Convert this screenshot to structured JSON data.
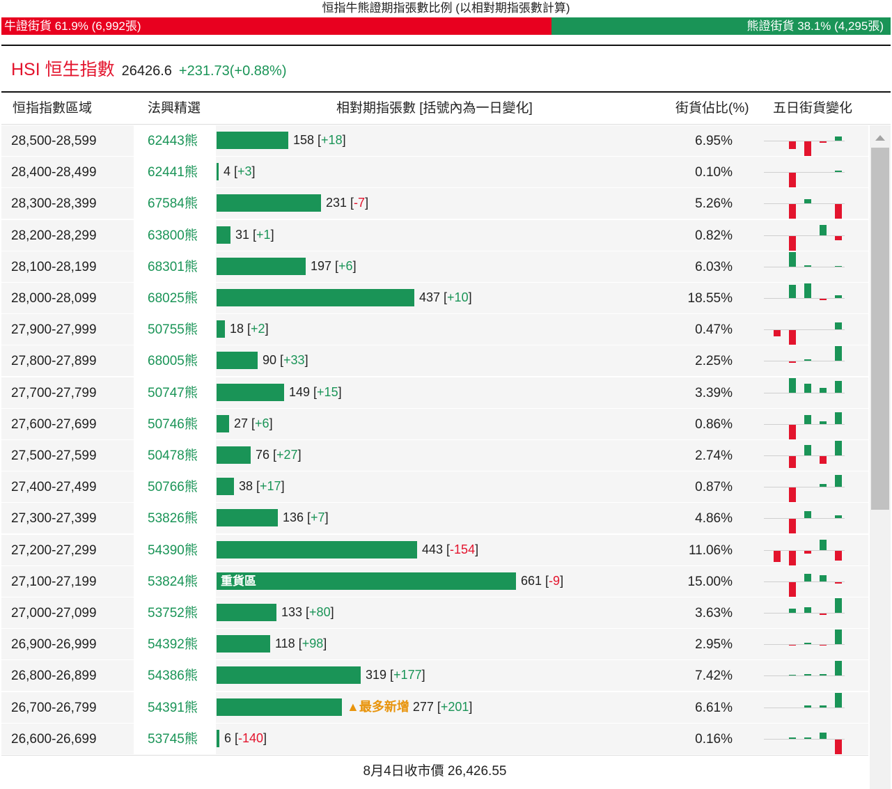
{
  "header": {
    "title": "恒指牛熊證期指張數比例 (以相對期指張數計算)",
    "bull_label": "牛證街貨 61.9% (6,992張)",
    "bear_label": "熊證街貨 38.1% (4,295張)",
    "bull_ratio": 0.619
  },
  "index": {
    "name": "HSI 恒生指數",
    "price": "26426.6",
    "change": "+231.73(+0.88%)"
  },
  "columns": {
    "range": "恒指指數區域",
    "warrant": "法興精選",
    "contracts": "相對期指張數 [括號內為一日變化]",
    "share": "街貨佔比(%)",
    "five_day": "五日街貨變化"
  },
  "rows": [
    {
      "range": "28,500-28,599",
      "warrant": "62443熊",
      "count": 158,
      "change": "+18",
      "share": "6.95%",
      "spark": [
        0,
        -5,
        -10,
        -1,
        3
      ]
    },
    {
      "range": "28,400-28,499",
      "warrant": "62441熊",
      "count": 4,
      "change": "+3",
      "share": "0.10%",
      "spark": [
        0,
        -10,
        0,
        0,
        1
      ]
    },
    {
      "range": "28,300-28,399",
      "warrant": "67584熊",
      "count": 231,
      "change": "-7",
      "share": "5.26%",
      "spark": [
        0,
        -10,
        3,
        0,
        -10
      ]
    },
    {
      "range": "28,200-28,299",
      "warrant": "63800熊",
      "count": 31,
      "change": "+1",
      "share": "0.82%",
      "spark": [
        0,
        -10,
        0,
        7,
        -3
      ]
    },
    {
      "range": "28,100-28,199",
      "warrant": "68301熊",
      "count": 197,
      "change": "+6",
      "share": "6.03%",
      "spark": [
        0,
        10,
        1,
        0,
        0.5
      ]
    },
    {
      "range": "28,000-28,099",
      "warrant": "68025熊",
      "count": 437,
      "change": "+10",
      "share": "18.55%",
      "spark": [
        0,
        9,
        10,
        -1,
        2
      ]
    },
    {
      "range": "27,900-27,999",
      "warrant": "50755熊",
      "count": 18,
      "change": "+2",
      "share": "0.47%",
      "spark": [
        -4,
        -10,
        0,
        0,
        5
      ]
    },
    {
      "range": "27,800-27,899",
      "warrant": "68005熊",
      "count": 90,
      "change": "+33",
      "share": "2.25%",
      "spark": [
        0,
        -1,
        1,
        0,
        10
      ]
    },
    {
      "range": "27,700-27,799",
      "warrant": "50747熊",
      "count": 149,
      "change": "+15",
      "share": "3.39%",
      "spark": [
        0,
        10,
        6,
        3,
        8
      ]
    },
    {
      "range": "27,600-27,699",
      "warrant": "50746熊",
      "count": 27,
      "change": "+6",
      "share": "0.86%",
      "spark": [
        0,
        -10,
        6,
        2,
        8
      ]
    },
    {
      "range": "27,500-27,599",
      "warrant": "50478熊",
      "count": 76,
      "change": "+27",
      "share": "2.74%",
      "spark": [
        0,
        -8,
        7,
        -5,
        10
      ]
    },
    {
      "range": "27,400-27,499",
      "warrant": "50766熊",
      "count": 38,
      "change": "+17",
      "share": "0.87%",
      "spark": [
        0,
        -10,
        0,
        2,
        8
      ]
    },
    {
      "range": "27,300-27,399",
      "warrant": "53826熊",
      "count": 136,
      "change": "+7",
      "share": "4.86%",
      "spark": [
        0,
        -10,
        5,
        0,
        2
      ]
    },
    {
      "range": "27,200-27,299",
      "warrant": "54390熊",
      "count": 443,
      "change": "-154",
      "share": "11.06%",
      "spark": [
        -8,
        -10,
        -2,
        7,
        -7
      ]
    },
    {
      "range": "27,100-27,199",
      "warrant": "53824熊",
      "count": 661,
      "change": "-9",
      "share": "15.00%",
      "label": "重貨區",
      "spark": [
        0,
        -10,
        5,
        4,
        -1
      ]
    },
    {
      "range": "27,000-27,099",
      "warrant": "53752熊",
      "count": 133,
      "change": "+80",
      "share": "3.63%",
      "spark": [
        0,
        3,
        4,
        -1,
        10
      ]
    },
    {
      "range": "26,900-26,999",
      "warrant": "54392熊",
      "count": 118,
      "change": "+98",
      "share": "2.95%",
      "spark": [
        0,
        -0.5,
        1,
        -0.5,
        10
      ]
    },
    {
      "range": "26,800-26,899",
      "warrant": "54386熊",
      "count": 319,
      "change": "+177",
      "share": "7.42%",
      "spark": [
        0,
        0.5,
        1,
        1,
        10
      ]
    },
    {
      "range": "26,700-26,799",
      "warrant": "54391熊",
      "count": 277,
      "change": "+201",
      "share": "6.61%",
      "tag": "最多新增",
      "spark": [
        0,
        0,
        1,
        1,
        10
      ]
    },
    {
      "range": "26,600-26,699",
      "warrant": "53745熊",
      "count": 6,
      "change": "-140",
      "share": "0.16%",
      "spark": [
        0,
        1,
        1,
        4,
        -10
      ]
    }
  ],
  "footer": {
    "close_label": "8月4日收市價 26,426.55"
  },
  "colors": {
    "bull": "#e8001f",
    "bear": "#1a9457",
    "negative": "#e3142d",
    "tag": "#e8940c"
  },
  "icons": {
    "scroll_up": "triangle-up-icon",
    "tag_marker": "warning-triangle-icon"
  }
}
